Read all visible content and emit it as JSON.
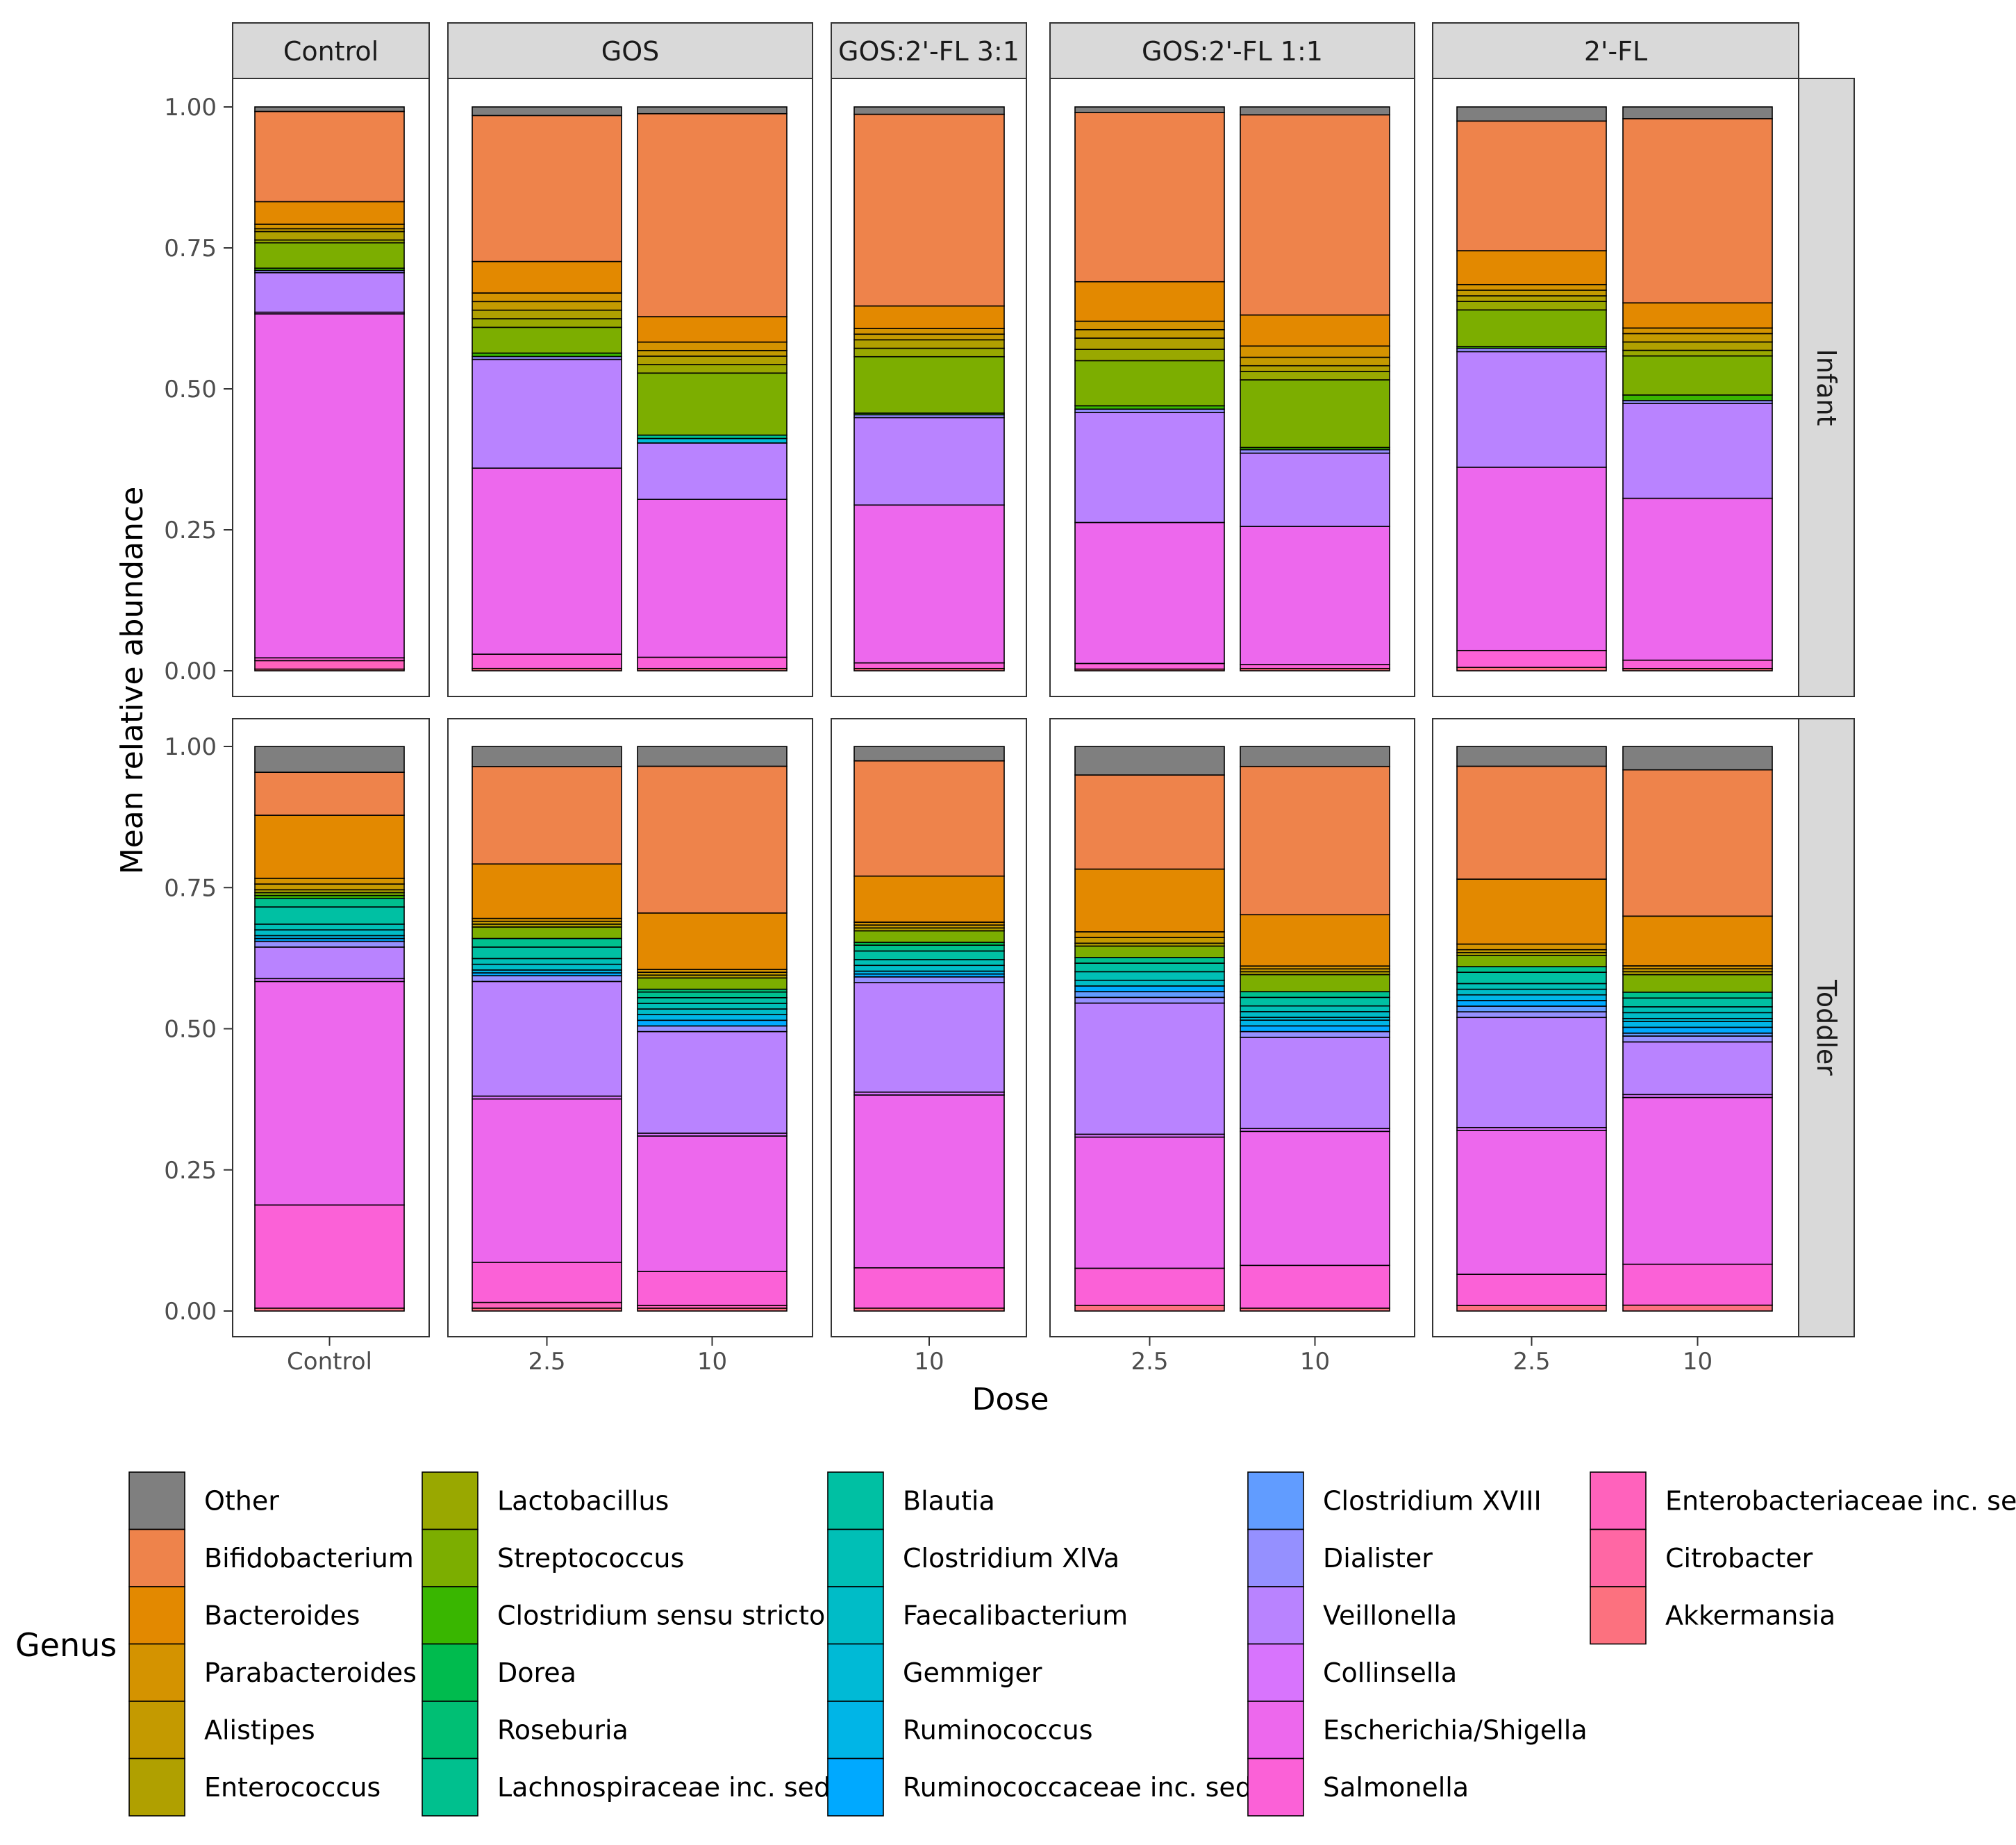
{
  "chart_data": {
    "type": "bar",
    "subtype": "stacked-100-faceted",
    "xlabel": "Dose",
    "ylabel": "Mean relative abundance",
    "ylim": [
      0,
      1
    ],
    "yticks": [
      "0.00",
      "0.25",
      "0.50",
      "0.75",
      "1.00"
    ],
    "legend_title": "Genus",
    "genera": [
      {
        "name": "Other",
        "color": "#7f7f7f"
      },
      {
        "name": "Bifidobacterium",
        "color": "#ee834b"
      },
      {
        "name": "Bacteroides",
        "color": "#e38900"
      },
      {
        "name": "Parabacteroides",
        "color": "#d49300"
      },
      {
        "name": "Alistipes",
        "color": "#c49a00"
      },
      {
        "name": "Enterococcus",
        "color": "#b0a000"
      },
      {
        "name": "Lactobacillus",
        "color": "#99a800"
      },
      {
        "name": "Streptococcus",
        "color": "#7cae00"
      },
      {
        "name": "Clostridium sensu stricto",
        "color": "#39b600"
      },
      {
        "name": "Dorea",
        "color": "#00bb4e"
      },
      {
        "name": "Roseburia",
        "color": "#00bf74"
      },
      {
        "name": "Lachnospiraceae inc. sed.",
        "color": "#00c08e"
      },
      {
        "name": "Blautia",
        "color": "#00c0a3"
      },
      {
        "name": "Clostridium XlVa",
        "color": "#00bfb6"
      },
      {
        "name": "Faecalibacterium",
        "color": "#00bcc7"
      },
      {
        "name": "Gemmiger",
        "color": "#00bad6"
      },
      {
        "name": "Ruminococcus",
        "color": "#00b5e7"
      },
      {
        "name": "Ruminococcaceae inc. sed.",
        "color": "#00a9ff"
      },
      {
        "name": "Clostridium XVIII",
        "color": "#619cff"
      },
      {
        "name": "Dialister",
        "color": "#9590ff"
      },
      {
        "name": "Veillonella",
        "color": "#b983ff"
      },
      {
        "name": "Collinsella",
        "color": "#d874fd"
      },
      {
        "name": "Escherichia/Shigella",
        "color": "#ed68ed"
      },
      {
        "name": "Salmonella",
        "color": "#fb61d7"
      },
      {
        "name": "Enterobacteriaceae inc. sed.",
        "color": "#ff62bc"
      },
      {
        "name": "Citrobacter",
        "color": "#ff67a4"
      },
      {
        "name": "Akkermansia",
        "color": "#fc717f"
      }
    ],
    "columns": [
      {
        "label": "Control",
        "doses": [
          "Control"
        ]
      },
      {
        "label": "GOS",
        "doses": [
          "2.5",
          "10"
        ]
      },
      {
        "label": "GOS:2'-FL 3:1",
        "doses": [
          "10"
        ]
      },
      {
        "label": "GOS:2'-FL 1:1",
        "doses": [
          "2.5",
          "10"
        ]
      },
      {
        "label": "2'-FL",
        "doses": [
          "2.5",
          "10"
        ]
      }
    ],
    "rows": [
      "Infant",
      "Toddler"
    ],
    "stack_order_bottom_to_top": [
      "Akkermansia",
      "Citrobacter",
      "Enterobacteriaceae inc. sed.",
      "Salmonella",
      "Escherichia/Shigella",
      "Collinsella",
      "Veillonella",
      "Dialister",
      "Clostridium XVIII",
      "Ruminococcaceae inc. sed.",
      "Ruminococcus",
      "Gemmiger",
      "Faecalibacterium",
      "Clostridium XlVa",
      "Blautia",
      "Lachnospiraceae inc. sed.",
      "Roseburia",
      "Dorea",
      "Clostridium sensu stricto",
      "Streptococcus",
      "Lactobacillus",
      "Enterococcus",
      "Alistipes",
      "Parabacteroides",
      "Bacteroides",
      "Bifidobacterium",
      "Other"
    ],
    "series": {
      "Infant": [
        [
          {
            "values": {
              "Akkermansia": 0.003,
              "Enterobacteriaceae inc. sed.": 0.015,
              "Salmonella": 0.005,
              "Escherichia/Shigella": 0.61,
              "Collinsella": 0.003,
              "Veillonella": 0.07,
              "Dialister": 0.004,
              "Clostridium sensu stricto": 0.004,
              "Streptococcus": 0.045,
              "Lactobacillus": 0.005,
              "Enterococcus": 0.015,
              "Alistipes": 0.005,
              "Parabacteroides": 0.008,
              "Bacteroides": 0.04,
              "Bifidobacterium": 0.16,
              "Other": 0.008
            }
          }
        ],
        [
          {
            "values": {
              "Akkermansia": 0.004,
              "Salmonella": 0.025,
              "Escherichia/Shigella": 0.325,
              "Veillonella": 0.19,
              "Dialister": 0.005,
              "Clostridium sensu stricto": 0.006,
              "Streptococcus": 0.045,
              "Lactobacillus": 0.015,
              "Enterococcus": 0.015,
              "Alistipes": 0.015,
              "Parabacteroides": 0.015,
              "Bacteroides": 0.055,
              "Bifidobacterium": 0.255,
              "Other": 0.015
            }
          },
          {
            "values": {
              "Akkermansia": 0.004,
              "Salmonella": 0.02,
              "Escherichia/Shigella": 0.28,
              "Veillonella": 0.1,
              "Gemmiger": 0.008,
              "Lachnospiraceae inc. sed.": 0.006,
              "Streptococcus": 0.11,
              "Lactobacillus": 0.015,
              "Enterococcus": 0.015,
              "Alistipes": 0.01,
              "Parabacteroides": 0.015,
              "Bacteroides": 0.045,
              "Bifidobacterium": 0.36,
              "Other": 0.012
            }
          }
        ],
        [
          {
            "values": {
              "Akkermansia": 0.004,
              "Salmonella": 0.01,
              "Escherichia/Shigella": 0.28,
              "Veillonella": 0.155,
              "Dialister": 0.005,
              "Clostridium sensu stricto": 0.003,
              "Streptococcus": 0.1,
              "Lactobacillus": 0.015,
              "Enterococcus": 0.015,
              "Alistipes": 0.01,
              "Parabacteroides": 0.01,
              "Bacteroides": 0.04,
              "Bifidobacterium": 0.34,
              "Other": 0.013
            }
          }
        ],
        [
          {
            "values": {
              "Akkermansia": 0.003,
              "Salmonella": 0.01,
              "Escherichia/Shigella": 0.25,
              "Veillonella": 0.195,
              "Dialister": 0.006,
              "Clostridium sensu stricto": 0.006,
              "Streptococcus": 0.08,
              "Lactobacillus": 0.02,
              "Enterococcus": 0.02,
              "Alistipes": 0.015,
              "Parabacteroides": 0.015,
              "Bacteroides": 0.07,
              "Bifidobacterium": 0.3,
              "Other": 0.01
            }
          },
          {
            "values": {
              "Akkermansia": 0.004,
              "Salmonella": 0.007,
              "Escherichia/Shigella": 0.245,
              "Veillonella": 0.13,
              "Dialister": 0.006,
              "Clostridium sensu stricto": 0.004,
              "Streptococcus": 0.12,
              "Lactobacillus": 0.015,
              "Enterococcus": 0.01,
              "Alistipes": 0.015,
              "Parabacteroides": 0.02,
              "Bacteroides": 0.055,
              "Bifidobacterium": 0.355,
              "Other": 0.014
            }
          }
        ],
        [
          {
            "values": {
              "Akkermansia": 0.006,
              "Salmonella": 0.03,
              "Escherichia/Shigella": 0.325,
              "Veillonella": 0.205,
              "Dialister": 0.006,
              "Clostridium sensu stricto": 0.003,
              "Streptococcus": 0.065,
              "Lactobacillus": 0.015,
              "Enterococcus": 0.01,
              "Alistipes": 0.01,
              "Parabacteroides": 0.01,
              "Bacteroides": 0.06,
              "Bifidobacterium": 0.23,
              "Other": 0.025
            }
          },
          {
            "values": {
              "Akkermansia": 0.004,
              "Salmonella": 0.015,
              "Escherichia/Shigella": 0.29,
              "Veillonella": 0.17,
              "Dialister": 0.005,
              "Clostridium sensu stricto": 0.01,
              "Streptococcus": 0.07,
              "Lactobacillus": 0.01,
              "Enterococcus": 0.015,
              "Alistipes": 0.015,
              "Parabacteroides": 0.01,
              "Bacteroides": 0.045,
              "Bifidobacterium": 0.33,
              "Other": 0.021
            }
          }
        ]
      ],
      "Toddler": [
        [
          {
            "values": {
              "Akkermansia": 0.005,
              "Salmonella": 0.18,
              "Escherichia/Shigella": 0.39,
              "Collinsella": 0.005,
              "Veillonella": 0.055,
              "Dialister": 0.01,
              "Ruminococcaceae inc. sed.": 0.005,
              "Ruminococcus": 0.005,
              "Faecalibacterium": 0.01,
              "Clostridium XlVa": 0.01,
              "Blautia": 0.03,
              "Lachnospiraceae inc. sed.": 0.015,
              "Clostridium sensu stricto": 0.005,
              "Streptococcus": 0.005,
              "Enterococcus": 0.005,
              "Alistipes": 0.01,
              "Parabacteroides": 0.01,
              "Bacteroides": 0.11,
              "Bifidobacterium": 0.075,
              "Other": 0.045
            }
          }
        ],
        [
          {
            "values": {
              "Akkermansia": 0.005,
              "Enterobacteriaceae inc. sed.": 0.01,
              "Salmonella": 0.07,
              "Escherichia/Shigella": 0.285,
              "Collinsella": 0.005,
              "Veillonella": 0.2,
              "Dialister": 0.01,
              "Ruminococcaceae inc. sed.": 0.005,
              "Ruminococcus": 0.005,
              "Faecalibacterium": 0.01,
              "Clostridium XlVa": 0.01,
              "Blautia": 0.02,
              "Lachnospiraceae inc. sed.": 0.015,
              "Streptococcus": 0.02,
              "Enterococcus": 0.005,
              "Alistipes": 0.005,
              "Parabacteroides": 0.005,
              "Bacteroides": 0.095,
              "Bifidobacterium": 0.17,
              "Other": 0.035
            }
          },
          {
            "values": {
              "Akkermansia": 0.005,
              "Enterobacteriaceae inc. sed.": 0.005,
              "Salmonella": 0.06,
              "Escherichia/Shigella": 0.24,
              "Collinsella": 0.005,
              "Veillonella": 0.18,
              "Dialister": 0.01,
              "Ruminococcaceae inc. sed.": 0.01,
              "Ruminococcus": 0.01,
              "Faecalibacterium": 0.01,
              "Clostridium XlVa": 0.01,
              "Blautia": 0.01,
              "Lachnospiraceae inc. sed.": 0.01,
              "Roseburia": 0.005,
              "Streptococcus": 0.02,
              "Enterococcus": 0.005,
              "Alistipes": 0.005,
              "Parabacteroides": 0.005,
              "Bacteroides": 0.1,
              "Bifidobacterium": 0.26,
              "Other": 0.035
            }
          }
        ],
        [
          {
            "values": {
              "Akkermansia": 0.005,
              "Salmonella": 0.07,
              "Escherichia/Shigella": 0.3,
              "Collinsella": 0.005,
              "Veillonella": 0.19,
              "Dialister": 0.01,
              "Ruminococcaceae inc. sed.": 0.005,
              "Ruminococcus": 0.005,
              "Faecalibacterium": 0.01,
              "Clostridium XlVa": 0.01,
              "Blautia": 0.015,
              "Lachnospiraceae inc. sed.": 0.01,
              "Dorea": 0.005,
              "Streptococcus": 0.02,
              "Enterococcus": 0.005,
              "Alistipes": 0.005,
              "Parabacteroides": 0.005,
              "Bacteroides": 0.08,
              "Bifidobacterium": 0.2,
              "Other": 0.025
            }
          }
        ],
        [
          {
            "values": {
              "Akkermansia": 0.01,
              "Salmonella": 0.065,
              "Escherichia/Shigella": 0.23,
              "Collinsella": 0.005,
              "Veillonella": 0.23,
              "Dialister": 0.01,
              "Clostridium XVIII": 0.01,
              "Ruminococcaceae inc. sed.": 0.01,
              "Faecalibacterium": 0.01,
              "Clostridium XlVa": 0.015,
              "Blautia": 0.015,
              "Lachnospiraceae inc. sed.": 0.01,
              "Streptococcus": 0.02,
              "Enterococcus": 0.005,
              "Alistipes": 0.01,
              "Parabacteroides": 0.01,
              "Bacteroides": 0.11,
              "Bifidobacterium": 0.165,
              "Other": 0.05
            }
          },
          {
            "values": {
              "Akkermansia": 0.005,
              "Salmonella": 0.075,
              "Escherichia/Shigella": 0.235,
              "Collinsella": 0.005,
              "Veillonella": 0.16,
              "Dialister": 0.01,
              "Ruminococcaceae inc. sed.": 0.01,
              "Ruminococcus": 0.01,
              "Gemmiger": 0.005,
              "Faecalibacterium": 0.01,
              "Clostridium XlVa": 0.01,
              "Blautia": 0.015,
              "Lachnospiraceae inc. sed.": 0.01,
              "Streptococcus": 0.03,
              "Enterococcus": 0.005,
              "Alistipes": 0.005,
              "Parabacteroides": 0.005,
              "Bacteroides": 0.09,
              "Bifidobacterium": 0.26,
              "Other": 0.035
            }
          }
        ],
        [
          {
            "values": {
              "Akkermansia": 0.01,
              "Salmonella": 0.055,
              "Escherichia/Shigella": 0.255,
              "Collinsella": 0.005,
              "Veillonella": 0.195,
              "Dialister": 0.01,
              "Clostridium XVIII": 0.01,
              "Ruminococcaceae inc. sed.": 0.01,
              "Ruminococcus": 0.01,
              "Faecalibacterium": 0.01,
              "Clostridium XlVa": 0.01,
              "Blautia": 0.02,
              "Lachnospiraceae inc. sed.": 0.01,
              "Streptococcus": 0.02,
              "Enterococcus": 0.005,
              "Alistipes": 0.005,
              "Parabacteroides": 0.01,
              "Bacteroides": 0.115,
              "Bifidobacterium": 0.2,
              "Other": 0.035
            }
          },
          {
            "values": {
              "Akkermansia": 0.01,
              "Salmonella": 0.07,
              "Escherichia/Shigella": 0.285,
              "Collinsella": 0.005,
              "Veillonella": 0.09,
              "Dialister": 0.01,
              "Clostridium XVIII": 0.005,
              "Ruminococcaceae inc. sed.": 0.01,
              "Ruminococcus": 0.01,
              "Gemmiger": 0.005,
              "Faecalibacterium": 0.01,
              "Clostridium XlVa": 0.01,
              "Blautia": 0.015,
              "Lachnospiraceae inc. sed.": 0.01,
              "Streptococcus": 0.03,
              "Enterococcus": 0.005,
              "Alistipes": 0.005,
              "Parabacteroides": 0.005,
              "Bacteroides": 0.085,
              "Bifidobacterium": 0.25,
              "Other": 0.04
            }
          }
        ]
      ]
    }
  }
}
